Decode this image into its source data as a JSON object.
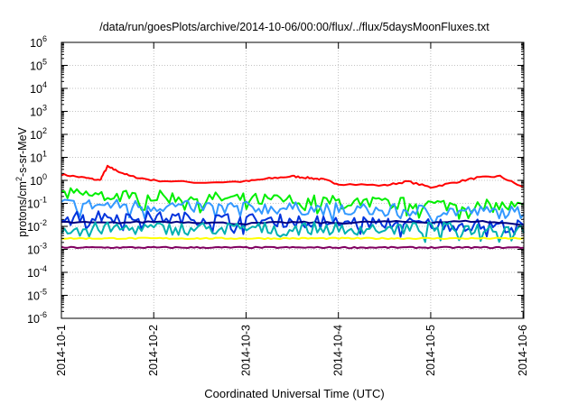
{
  "chart_data": {
    "type": "line",
    "title": "/data/run/goesPlots/archive/2014-10-06/00:00/flux/../flux/5daysMoonFluxes.txt",
    "xlabel": "Coordinated Universal Time (UTC)",
    "ylabel": {
      "prefix": "protons/cm",
      "sup": "2",
      "suffix": "-s-sr-MeV"
    },
    "xlim": [
      "2014-10-01T00:00",
      "2014-10-06T00:12"
    ],
    "ylim": [
      1e-06,
      1000000.0
    ],
    "yscale": "log",
    "grid": true,
    "x_ticks": [
      "2014-10-1",
      "2014-10-2",
      "2014-10-3",
      "2014-10-4",
      "2014-10-5",
      "2014-10-6"
    ],
    "y_ticks": [
      {
        "base": "10",
        "exp": "-6"
      },
      {
        "base": "10",
        "exp": "-5"
      },
      {
        "base": "10",
        "exp": "-4"
      },
      {
        "base": "10",
        "exp": "-3"
      },
      {
        "base": "10",
        "exp": "-2"
      },
      {
        "base": "10",
        "exp": "-1"
      },
      {
        "base": "10",
        "exp": "0"
      },
      {
        "base": "10",
        "exp": "1"
      },
      {
        "base": "10",
        "exp": "2"
      },
      {
        "base": "10",
        "exp": "3"
      },
      {
        "base": "10",
        "exp": "4"
      },
      {
        "base": "10",
        "exp": "5"
      },
      {
        "base": "10",
        "exp": "6"
      }
    ],
    "series": [
      {
        "color": "#ff0000",
        "style": "smooth",
        "x": [
          "2014-10-01T00:00",
          "2014-10-01T06:00",
          "2014-10-01T10:00",
          "2014-10-01T12:00",
          "2014-10-01T14:00",
          "2014-10-01T18:00",
          "2014-10-02T00:00",
          "2014-10-02T12:00",
          "2014-10-03T00:00",
          "2014-10-03T06:00",
          "2014-10-03T12:00",
          "2014-10-03T16:00",
          "2014-10-03T20:00",
          "2014-10-04T00:00",
          "2014-10-04T12:00",
          "2014-10-04T18:00",
          "2014-10-05T00:00",
          "2014-10-05T06:00",
          "2014-10-05T12:00",
          "2014-10-05T18:00",
          "2014-10-06T00:00"
        ],
        "y": [
          1.8,
          1.3,
          1.0,
          4.0,
          2.8,
          1.5,
          1.0,
          0.8,
          0.9,
          1.2,
          1.5,
          1.3,
          1.1,
          0.7,
          0.6,
          0.9,
          0.5,
          0.8,
          1.3,
          1.5,
          0.5
        ]
      },
      {
        "color": "#00ee00",
        "style": "noisy",
        "x_from": "2014-10-01T00:00",
        "x_to": "2014-10-06T00:12",
        "y_start": 0.25,
        "y_end": 0.07
      },
      {
        "color": "#3399ff",
        "style": "noisy",
        "x_from": "2014-10-01T00:00",
        "x_to": "2014-10-06T00:12",
        "y_start": 0.09,
        "y_end": 0.04
      },
      {
        "color": "#0033dd",
        "style": "noisy",
        "x_from": "2014-10-01T00:00",
        "x_to": "2014-10-06T00:12",
        "y_start": 0.03,
        "y_end": 0.01
      },
      {
        "color": "#000080",
        "style": "smooth",
        "x": [
          "2014-10-01T00:00",
          "2014-10-01T12:00",
          "2014-10-02T00:00",
          "2014-10-02T12:00",
          "2014-10-03T00:00",
          "2014-10-03T12:00",
          "2014-10-04T00:00",
          "2014-10-04T12:00",
          "2014-10-05T00:00",
          "2014-10-05T12:00",
          "2014-10-06T00:00"
        ],
        "y": [
          0.015,
          0.014,
          0.016,
          0.015,
          0.013,
          0.015,
          0.014,
          0.016,
          0.015,
          0.017,
          0.012
        ]
      },
      {
        "color": "#00b0b0",
        "style": "noisy",
        "x_from": "2014-10-01T00:00",
        "x_to": "2014-10-06T00:12",
        "y_start": 0.008,
        "y_end": 0.008
      },
      {
        "color": "#ffff00",
        "style": "flat",
        "x_from": "2014-10-01T00:00",
        "x_to": "2014-10-06T00:12",
        "y_start": 0.003,
        "y_end": 0.003
      },
      {
        "color": "#800060",
        "style": "flat",
        "x_from": "2014-10-01T00:00",
        "x_to": "2014-10-06T00:12",
        "y_start": 0.0012,
        "y_end": 0.0012
      }
    ]
  }
}
